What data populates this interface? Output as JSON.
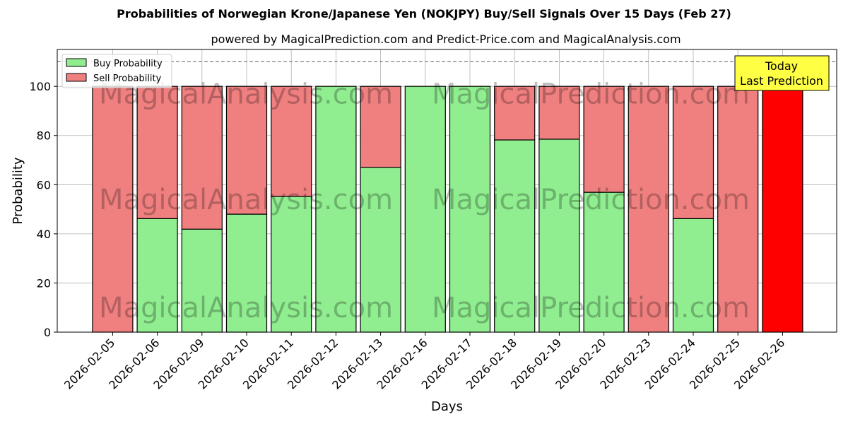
{
  "chart_data": {
    "type": "bar",
    "stacked": true,
    "title": "Probabilities of Norwegian Krone/Japanese Yen (NOKJPY) Buy/Sell Signals Over 15 Days (Feb 27)",
    "subtitle": "powered by MagicalPrediction.com and Predict-Price.com and MagicalAnalysis.com",
    "xlabel": "Days",
    "ylabel": "Probability",
    "ylim": [
      0,
      115
    ],
    "yticks": [
      0,
      20,
      40,
      60,
      80,
      100
    ],
    "reference_line": 110,
    "grid": true,
    "legend_position": "top-left",
    "categories": [
      "2026-02-05",
      "2026-02-06",
      "2026-02-09",
      "2026-02-10",
      "2026-02-11",
      "2026-02-12",
      "2026-02-13",
      "2026-02-16",
      "2026-02-17",
      "2026-02-18",
      "2026-02-19",
      "2026-02-20",
      "2026-02-23",
      "2026-02-24",
      "2026-02-25",
      "2026-02-26"
    ],
    "series": [
      {
        "name": "Buy Probability",
        "color": "#90EE90",
        "values": [
          0,
          46.2,
          41.9,
          48.0,
          55.2,
          100,
          67.0,
          100,
          100,
          78.2,
          78.5,
          56.9,
          0,
          46.2,
          0,
          0
        ]
      },
      {
        "name": "Sell Probability",
        "color": "#F08080",
        "values": [
          100,
          53.8,
          58.1,
          52.0,
          44.8,
          0,
          33.0,
          0,
          0,
          21.8,
          21.5,
          43.1,
          100,
          53.8,
          100,
          100
        ]
      }
    ],
    "highlight": {
      "index": 15,
      "color": "#FF0000"
    },
    "annotation": {
      "line1": "Today",
      "line2": "Last Prediction",
      "color": "#FFFF44"
    },
    "watermark": "MagicalAnalysis.com    MagicalPrediction.com"
  }
}
